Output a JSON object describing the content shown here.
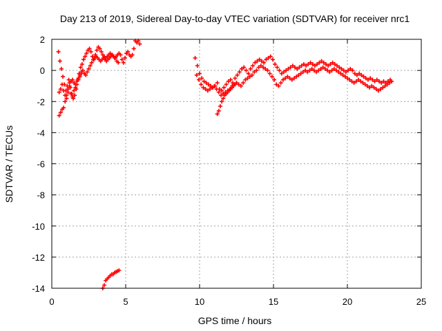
{
  "chart_data": {
    "type": "scatter",
    "title": "Day 213 of 2019, Sidereal Day-to-day VTEC variation (SDTVAR) for receiver nrc1",
    "xlabel": "GPS time / hours",
    "ylabel": "SDTVAR / TECUs",
    "xlim": [
      0,
      25
    ],
    "ylim": [
      -14,
      2
    ],
    "xticks": [
      0,
      5,
      10,
      15,
      20,
      25
    ],
    "yticks": [
      -14,
      -12,
      -10,
      -8,
      -6,
      -4,
      -2,
      0,
      2
    ],
    "grid": true,
    "marker": "+",
    "series_color": "#ff0000",
    "series": [
      {
        "name": "SDTVAR",
        "x": [
          0.45,
          0.55,
          0.65,
          0.75,
          0.85,
          0.95,
          1.05,
          1.15,
          1.25,
          1.35,
          1.45,
          1.55,
          1.65,
          1.75,
          1.85,
          1.95,
          2.05,
          2.15,
          2.25,
          2.35,
          2.45,
          2.55,
          2.65,
          2.75,
          2.85,
          2.95,
          3.05,
          3.15,
          3.25,
          3.35,
          3.45,
          3.55,
          3.65,
          3.75,
          3.85,
          3.95,
          4.05,
          4.15,
          4.25,
          4.35,
          4.45,
          4.55,
          4.65,
          4.75,
          4.85,
          4.95,
          5.05,
          5.15,
          5.25,
          5.35,
          5.45,
          5.55,
          5.65,
          5.75,
          5.85,
          5.95,
          0.5,
          0.6,
          0.7,
          0.8,
          0.9,
          1.0,
          1.1,
          1.2,
          1.3,
          1.4,
          1.5,
          1.6,
          1.7,
          1.8,
          1.9,
          2.0,
          2.1,
          2.2,
          2.3,
          2.4,
          2.5,
          2.6,
          2.7,
          2.8,
          2.9,
          3.0,
          3.1,
          3.2,
          3.3,
          3.4,
          3.5,
          3.6,
          3.7,
          3.8,
          3.9,
          4.0,
          4.1,
          4.2,
          4.3,
          4.4,
          4.5,
          0.5,
          0.6,
          0.7,
          0.8,
          0.9,
          1.0,
          1.1,
          1.2,
          1.3,
          1.4,
          1.5,
          1.6,
          1.7,
          1.8,
          1.9,
          2.0,
          3.45,
          3.55,
          3.65,
          3.75,
          3.85,
          3.95,
          4.05,
          4.15,
          4.25,
          4.35,
          4.45,
          4.55,
          9.7,
          9.85,
          10.0,
          10.15,
          10.3,
          10.45,
          10.6,
          10.75,
          10.9,
          11.05,
          11.2,
          11.35,
          11.5,
          11.65,
          11.8,
          11.95,
          12.1,
          12.25,
          12.4,
          12.55,
          12.7,
          12.85,
          13.0,
          13.15,
          13.3,
          13.45,
          13.6,
          13.75,
          13.9,
          14.05,
          14.2,
          14.35,
          14.5,
          14.65,
          14.8,
          14.95,
          15.1,
          15.25,
          15.4,
          15.55,
          15.7,
          15.85,
          16.0,
          16.15,
          16.3,
          16.45,
          16.6,
          16.75,
          16.9,
          17.05,
          17.2,
          17.35,
          17.5,
          17.65,
          17.8,
          17.95,
          18.1,
          18.25,
          18.4,
          18.55,
          18.7,
          18.85,
          19.0,
          19.15,
          19.3,
          19.45,
          19.6,
          19.75,
          19.9,
          20.05,
          20.2,
          20.35,
          20.5,
          20.65,
          20.8,
          20.95,
          21.1,
          21.25,
          21.4,
          21.55,
          21.7,
          21.85,
          22.0,
          22.15,
          22.3,
          22.45,
          22.6,
          22.75,
          22.9,
          9.8,
          9.95,
          10.1,
          10.25,
          10.4,
          10.55,
          10.7,
          10.85,
          11.0,
          11.15,
          11.3,
          11.45,
          11.6,
          11.75,
          11.9,
          12.05,
          12.2,
          12.35,
          12.5,
          12.65,
          12.8,
          12.95,
          13.1,
          13.25,
          13.4,
          13.55,
          13.7,
          13.85,
          14.0,
          14.15,
          14.3,
          14.45,
          14.6,
          14.75,
          14.9,
          15.05,
          15.2,
          15.35,
          15.5,
          15.65,
          15.8,
          15.95,
          16.1,
          16.25,
          16.4,
          16.55,
          16.7,
          16.85,
          17.0,
          17.15,
          17.3,
          17.45,
          17.6,
          17.75,
          17.9,
          18.05,
          18.2,
          18.35,
          18.5,
          18.65,
          18.8,
          18.95,
          19.1,
          19.25,
          19.4,
          19.55,
          19.7,
          19.85,
          20.0,
          20.15,
          20.3,
          20.45,
          20.6,
          20.75,
          20.9,
          21.05,
          21.2,
          21.35,
          21.5,
          21.65,
          21.8,
          21.95,
          22.1,
          22.25,
          22.4,
          22.55,
          22.7,
          22.85,
          23.0,
          11.2,
          11.3,
          11.4,
          11.5,
          11.6,
          11.7,
          11.8,
          11.9,
          12.0,
          12.1,
          12.2,
          12.3,
          12.4,
          12.5
        ],
        "y": [
          1.2,
          0.6,
          0.1,
          -0.4,
          -0.9,
          -1.3,
          -1.0,
          -0.6,
          -1.1,
          -1.5,
          -1.8,
          -1.6,
          -1.2,
          -0.6,
          -0.2,
          0.2,
          0.4,
          0.7,
          0.9,
          1.1,
          1.3,
          1.4,
          1.2,
          0.9,
          0.7,
          1.0,
          1.3,
          1.5,
          1.4,
          1.2,
          1.0,
          0.9,
          0.8,
          0.9,
          1.0,
          1.1,
          1.0,
          0.9,
          0.8,
          0.9,
          1.0,
          1.1,
          1.0,
          0.7,
          0.5,
          0.8,
          1.1,
          1.2,
          1.0,
          0.9,
          1.0,
          1.4,
          1.9,
          1.8,
          1.9,
          1.7,
          -2.9,
          -2.7,
          -2.5,
          -2.4,
          -2.0,
          -1.6,
          -1.2,
          -0.8,
          -0.7,
          -0.6,
          -0.8,
          -1.1,
          -0.9,
          -0.6,
          -0.4,
          -0.2,
          0.0,
          -0.2,
          -0.3,
          -0.1,
          0.1,
          0.3,
          0.5,
          0.7,
          0.8,
          0.9,
          0.8,
          0.7,
          0.6,
          0.7,
          0.8,
          0.7,
          0.6,
          0.7,
          0.8,
          0.9,
          1.0,
          0.9,
          0.8,
          0.6,
          0.5,
          -1.4,
          -1.2,
          -0.9,
          -1.3,
          -1.6,
          -1.8,
          -1.4,
          -1.0,
          -1.5,
          -1.7,
          -1.3,
          -0.9,
          -0.7,
          -0.5,
          -0.3,
          -0.1,
          -14.0,
          -13.8,
          -13.5,
          -13.4,
          -13.3,
          -13.2,
          -13.1,
          -13.1,
          -13.0,
          -12.95,
          -12.9,
          -12.85,
          0.8,
          0.3,
          -0.2,
          -0.5,
          -0.7,
          -0.8,
          -0.9,
          -1.0,
          -1.1,
          -1.0,
          -0.8,
          -1.2,
          -1.3,
          -1.1,
          -0.9,
          -0.7,
          -0.6,
          -0.8,
          -0.5,
          -0.3,
          -0.1,
          0.1,
          0.2,
          0.0,
          -0.2,
          0.1,
          0.3,
          0.5,
          0.6,
          0.7,
          0.6,
          0.5,
          0.7,
          0.8,
          0.9,
          0.7,
          0.4,
          0.2,
          0.0,
          -0.2,
          -0.1,
          0.0,
          0.1,
          0.2,
          0.3,
          0.2,
          0.1,
          0.2,
          0.3,
          0.4,
          0.3,
          0.4,
          0.5,
          0.4,
          0.3,
          0.4,
          0.5,
          0.6,
          0.5,
          0.4,
          0.3,
          0.4,
          0.5,
          0.4,
          0.3,
          0.2,
          0.1,
          0.0,
          -0.1,
          0.0,
          0.1,
          0.0,
          -0.2,
          -0.3,
          -0.2,
          -0.3,
          -0.4,
          -0.5,
          -0.6,
          -0.5,
          -0.6,
          -0.7,
          -0.6,
          -0.7,
          -0.8,
          -0.7,
          -0.8,
          -0.7,
          -0.6,
          -0.3,
          -0.6,
          -0.9,
          -1.1,
          -1.2,
          -1.3,
          -1.2,
          -1.1,
          -1.0,
          -1.2,
          -1.4,
          -1.6,
          -1.5,
          -1.4,
          -1.3,
          -1.2,
          -1.0,
          -0.9,
          -0.8,
          -0.9,
          -1.0,
          -0.8,
          -0.6,
          -0.5,
          -0.4,
          -0.3,
          -0.1,
          0.0,
          0.2,
          0.3,
          0.2,
          0.1,
          0.0,
          -0.2,
          -0.4,
          -0.6,
          -0.9,
          -1.0,
          -0.8,
          -0.6,
          -0.5,
          -0.4,
          -0.5,
          -0.6,
          -0.5,
          -0.4,
          -0.3,
          -0.2,
          -0.1,
          0.0,
          -0.1,
          0.0,
          0.1,
          0.0,
          -0.1,
          0.0,
          0.1,
          0.2,
          0.1,
          0.0,
          -0.1,
          0.0,
          0.1,
          0.0,
          -0.1,
          -0.2,
          -0.3,
          -0.4,
          -0.5,
          -0.6,
          -0.7,
          -0.8,
          -0.7,
          -0.6,
          -0.7,
          -0.8,
          -0.9,
          -1.0,
          -1.1,
          -1.0,
          -1.1,
          -1.2,
          -1.3,
          -1.2,
          -1.1,
          -1.0,
          -0.9,
          -0.8,
          -0.7,
          -2.8,
          -2.6,
          -2.3,
          -2.0,
          -1.8,
          -1.6,
          -1.5,
          -1.4,
          -1.3,
          -1.2,
          -1.1,
          -1.0,
          -0.9,
          -0.8
        ]
      }
    ]
  }
}
